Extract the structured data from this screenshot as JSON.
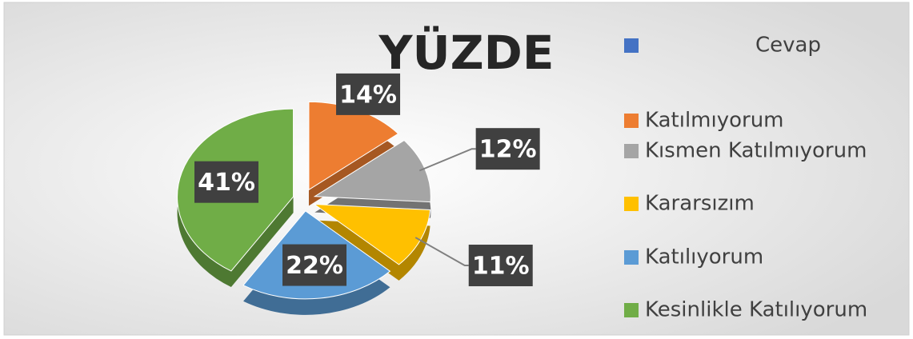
{
  "chart_data": {
    "type": "pie",
    "title": "YÜZDE",
    "legend_header": {
      "text": "Cevap",
      "color": "#4472c4"
    },
    "categories": [
      "Katılmıyorum",
      "Kısmen Katılmıyorum",
      "Kararsızım",
      "Katılıyorum",
      "Kesinlikle Katılıyorum"
    ],
    "values": [
      14,
      12,
      11,
      22,
      41
    ],
    "value_labels": [
      "14%",
      "12%",
      "11%",
      "22%",
      "41%"
    ],
    "colors": [
      "#ed7d31",
      "#a5a5a5",
      "#ffc000",
      "#5b9bd5",
      "#70ad47"
    ],
    "legend": "right"
  }
}
